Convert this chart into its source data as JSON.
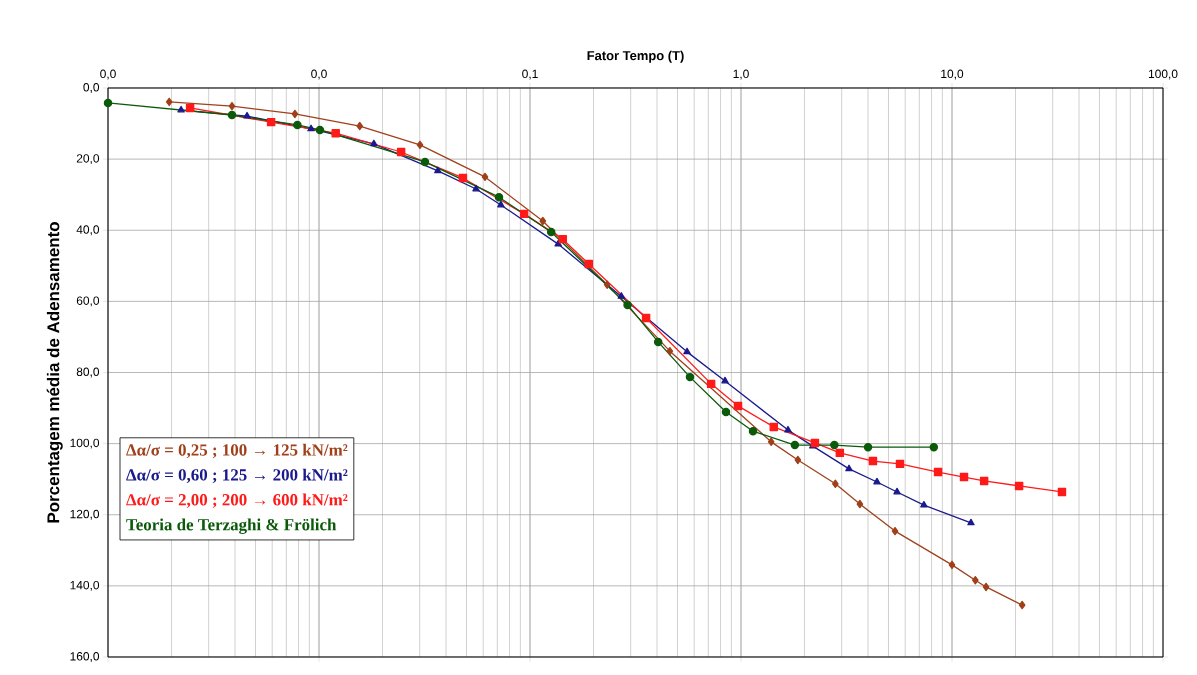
{
  "chart_data": {
    "type": "line",
    "xlabel": "Fator Tempo (T)",
    "ylabel": "Porcentagem média de Adensamento",
    "log": "x",
    "grid": true,
    "legend": "bottom left",
    "xlim": [
      0.001,
      100
    ],
    "ylim": [
      160,
      0
    ],
    "xticks": [
      {
        "value": 0.001,
        "label": "0,0"
      },
      {
        "value": 0.01,
        "label": "0,0"
      },
      {
        "value": 0.1,
        "label": "0,1"
      },
      {
        "value": 1,
        "label": "1,0"
      },
      {
        "value": 10,
        "label": "10,0"
      },
      {
        "value": 100,
        "label": "100,0"
      }
    ],
    "yticks": [
      {
        "value": 0,
        "label": "0,0"
      },
      {
        "value": 20,
        "label": "20,0"
      },
      {
        "value": 40,
        "label": "40,0"
      },
      {
        "value": 60,
        "label": "60,0"
      },
      {
        "value": 80,
        "label": "80,0"
      },
      {
        "value": 100,
        "label": "100,0"
      },
      {
        "value": 120,
        "label": "120,0"
      },
      {
        "value": 140,
        "label": "140,0"
      },
      {
        "value": 160,
        "label": "160,0"
      }
    ],
    "series": [
      {
        "name": "Δα/σ = 0,25 ; 100 → 125 kN/m²",
        "color": "#a0401a",
        "marker": "diamond",
        "x": [
          0.00195,
          0.00387,
          0.00769,
          0.0156,
          0.0301,
          0.0612,
          0.115,
          0.232,
          0.46,
          1.39,
          1.86,
          2.8,
          3.66,
          5.37,
          10.0,
          12.9,
          14.5,
          21.5
        ],
        "values": [
          3.9,
          5.1,
          7.3,
          10.7,
          16,
          25,
          37.4,
          55.3,
          74,
          99.5,
          104.6,
          111.3,
          117,
          124.6,
          134.1,
          138.4,
          140.3,
          145.4
        ]
      },
      {
        "name": "Δα/σ = 0,60 ; 125 → 200 kN/m²",
        "color": "#1a1a8c",
        "marker": "triangle",
        "x": [
          0.00222,
          0.00456,
          0.00917,
          0.0182,
          0.0366,
          0.0555,
          0.0728,
          0.136,
          0.271,
          0.555,
          0.84,
          1.67,
          2.19,
          3.25,
          4.41,
          5.49,
          7.36,
          12.3
        ],
        "values": [
          6.2,
          7.9,
          11.5,
          15.7,
          23.3,
          28.4,
          32.9,
          43.9,
          58.6,
          74.2,
          82.4,
          96.2,
          100.7,
          107.1,
          110.8,
          113.6,
          117.3,
          122.3
        ]
      },
      {
        "name": "Δα/σ = 2,00 ; 200 → 600 kN/m²",
        "color": "#ff1a1a",
        "marker": "square",
        "x": [
          0.00245,
          0.00593,
          0.012,
          0.0245,
          0.0481,
          0.0938,
          0.143,
          0.19,
          0.355,
          0.722,
          0.968,
          1.43,
          2.24,
          2.94,
          4.22,
          5.67,
          8.59,
          11.4,
          14.2,
          20.8,
          33.2
        ],
        "values": [
          5.6,
          9.6,
          12.7,
          18,
          25.3,
          35.4,
          42.5,
          49.5,
          64.7,
          83.2,
          89.4,
          95.3,
          99.8,
          102.6,
          104.9,
          105.7,
          108,
          109.4,
          110.5,
          111.9,
          113.6
        ]
      },
      {
        "name": "Teoria de Terzaghi & Frölich",
        "color": "#0a5a0a",
        "marker": "circle",
        "x": [
          0.001,
          0.00387,
          0.0079,
          0.0101,
          0.0318,
          0.0713,
          0.126,
          0.29,
          0.405,
          0.573,
          0.849,
          1.14,
          1.8,
          2.77,
          4.0,
          8.2
        ],
        "values": [
          4.2,
          7.6,
          10.4,
          11.8,
          20.8,
          30.7,
          40.5,
          61,
          71.4,
          81.3,
          91.1,
          96.5,
          100.4,
          100.4,
          101,
          101
        ]
      }
    ]
  }
}
